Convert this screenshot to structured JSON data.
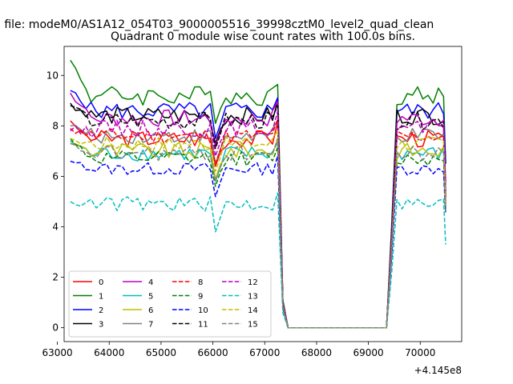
{
  "figure": {
    "suptitle": "n file: modeM0/AS1A12_054T03_9000005516_39998cztM0_level2_quad_clean",
    "title": "Quadrant 0 module wise count rates with 100.0s bins.",
    "x_offset_label": "+4.145e8"
  },
  "chart_data": {
    "type": "line",
    "title": "Quadrant 0 module wise count rates with 100.0s bins.",
    "xlabel": "",
    "ylabel": "",
    "x_offset": "+4.145e8",
    "xlim": [
      63130,
      70800
    ],
    "ylim": [
      -0.55,
      11.15
    ],
    "xticks": [
      63000,
      64000,
      65000,
      66000,
      67000,
      68000,
      69000,
      70000
    ],
    "yticks": [
      0,
      2,
      4,
      6,
      8,
      10
    ],
    "grid": false,
    "legend": {
      "placement": "lower-left",
      "columns": 4
    },
    "x": {
      "seg1": [
        63250,
        63350,
        63450,
        63550,
        63650,
        63750,
        63850,
        63950,
        64050,
        64150,
        64250,
        64350,
        64450,
        64550,
        64650,
        64750,
        64850,
        64950,
        65050,
        65150,
        65250,
        65350,
        65450,
        65550,
        65650,
        65750,
        65850,
        65950,
        66050,
        66150,
        66250,
        66350,
        66450,
        66550,
        66650,
        66750,
        66850,
        66950,
        67050,
        67150,
        67250
      ],
      "gap": [
        67350,
        67450,
        69350
      ],
      "seg2": [
        69450,
        69550,
        69650,
        69750,
        69850,
        69950,
        70050,
        70150,
        70250,
        70350,
        70450,
        70490
      ]
    },
    "series": [
      {
        "name": "0",
        "color": "#ff0000",
        "dash": "solid",
        "base": 7.5,
        "start": 8.2,
        "end2": 5.0,
        "amp": 0.35
      },
      {
        "name": "1",
        "color": "#008000",
        "dash": "solid",
        "base": 9.2,
        "start": 10.6,
        "end2": 6.5,
        "amp": 0.4
      },
      {
        "name": "2",
        "color": "#0000ff",
        "dash": "solid",
        "base": 8.6,
        "start": 9.4,
        "end2": 6.5,
        "amp": 0.35
      },
      {
        "name": "3",
        "color": "#000000",
        "dash": "solid",
        "base": 8.4,
        "start": 8.9,
        "end2": 5.2,
        "amp": 0.35
      },
      {
        "name": "4",
        "color": "#bf00bf",
        "dash": "solid",
        "base": 8.3,
        "start": 9.3,
        "end2": 5.8,
        "amp": 0.35
      },
      {
        "name": "5",
        "color": "#00bfbf",
        "dash": "solid",
        "base": 6.9,
        "start": 7.4,
        "end2": 4.6,
        "amp": 0.3
      },
      {
        "name": "6",
        "color": "#bfbf00",
        "dash": "solid",
        "base": 7.0,
        "start": 7.3,
        "end2": 4.8,
        "amp": 0.35
      },
      {
        "name": "7",
        "color": "#808080",
        "dash": "solid",
        "base": 7.6,
        "start": 8.0,
        "end2": 5.0,
        "amp": 0.3
      },
      {
        "name": "8",
        "color": "#ff0000",
        "dash": "dashed",
        "base": 7.6,
        "start": 7.9,
        "end2": 5.2,
        "amp": 0.3
      },
      {
        "name": "9",
        "color": "#008000",
        "dash": "dashed",
        "base": 6.7,
        "start": 7.5,
        "end2": 4.7,
        "amp": 0.3
      },
      {
        "name": "10",
        "color": "#0000ff",
        "dash": "dashed",
        "base": 6.3,
        "start": 6.6,
        "end2": 4.5,
        "amp": 0.25
      },
      {
        "name": "11",
        "color": "#000000",
        "dash": "dashed",
        "base": 8.2,
        "start": 8.8,
        "end2": 5.3,
        "amp": 0.35
      },
      {
        "name": "12",
        "color": "#bf00bf",
        "dash": "dashed",
        "base": 7.9,
        "start": 7.8,
        "end2": 4.8,
        "amp": 0.35
      },
      {
        "name": "13",
        "color": "#00bfbf",
        "dash": "dashed",
        "base": 4.9,
        "start": 5.0,
        "end2": 3.3,
        "amp": 0.3
      },
      {
        "name": "14",
        "color": "#bfbf00",
        "dash": "dashed",
        "base": 7.3,
        "start": 7.5,
        "end2": 4.9,
        "amp": 0.3
      },
      {
        "name": "15",
        "color": "#808080",
        "dash": "dashed",
        "base": 6.9,
        "start": 7.3,
        "end2": 4.6,
        "amp": 0.3
      }
    ]
  }
}
